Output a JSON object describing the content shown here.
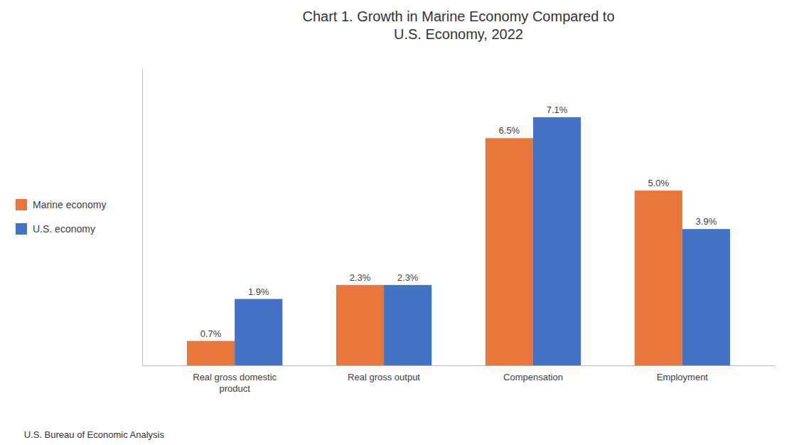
{
  "chart_data": {
    "type": "bar",
    "title": "Chart 1. Growth in Marine Economy Compared to\nU.S. Economy, 2022",
    "categories": [
      "Real gross domestic\nproduct",
      "Real gross output",
      "Compensation",
      "Employment"
    ],
    "series": [
      {
        "name": "Marine economy",
        "color": "#E8763A",
        "values": [
          0.7,
          2.3,
          6.5,
          5.0
        ],
        "value_labels": [
          "0.7%",
          "2.3%",
          "6.5%",
          "5.0%"
        ]
      },
      {
        "name": "U.S. economy",
        "color": "#4472C4",
        "values": [
          1.9,
          2.3,
          7.1,
          3.9
        ],
        "value_labels": [
          "1.9%",
          "2.3%",
          "7.1%",
          "3.9%"
        ]
      }
    ],
    "ylim": [
      0,
      8.5
    ],
    "tick_labels": "x",
    "data_labels": true,
    "legend": "left",
    "grid": false,
    "annotations": [
      "U.S. Bureau of Economic Analysis"
    ]
  }
}
